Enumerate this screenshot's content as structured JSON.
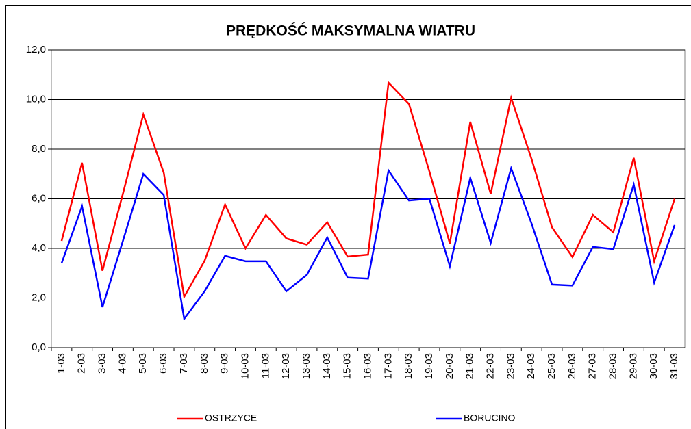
{
  "chart_data": {
    "type": "line",
    "title": "PRĘDKOŚĆ MAKSYMALNA WIATRU",
    "categories": [
      "1-03",
      "2-03",
      "3-03",
      "4-03",
      "5-03",
      "6-03",
      "7-03",
      "8-03",
      "9-03",
      "10-03",
      "11-03",
      "12-03",
      "13-03",
      "14-03",
      "15-03",
      "16-03",
      "17-03",
      "18-03",
      "19-03",
      "20-03",
      "21-03",
      "22-03",
      "23-03",
      "24-03",
      "25-03",
      "26-03",
      "27-03",
      "28-03",
      "29-03",
      "30-03",
      "31-03"
    ],
    "series": [
      {
        "name": "OSTRZYCE",
        "color": "#ff0000",
        "values": [
          4.3,
          7.45,
          3.1,
          6.2,
          9.4,
          7.05,
          2.05,
          3.5,
          5.77,
          4.0,
          5.35,
          4.4,
          4.15,
          5.05,
          3.67,
          3.75,
          10.68,
          9.82,
          7.1,
          4.2,
          9.1,
          6.2,
          10.07,
          7.6,
          4.85,
          3.65,
          5.35,
          4.65,
          7.65,
          3.48,
          6.0
        ]
      },
      {
        "name": "BORUCINO",
        "color": "#0000ff",
        "values": [
          3.4,
          5.7,
          1.63,
          4.3,
          7.0,
          6.15,
          1.16,
          2.27,
          3.7,
          3.48,
          3.48,
          2.27,
          2.93,
          4.44,
          2.82,
          2.78,
          7.14,
          5.93,
          6.0,
          3.28,
          6.84,
          4.22,
          7.23,
          5.0,
          2.54,
          2.5,
          4.06,
          3.97,
          6.57,
          2.62,
          4.94
        ]
      }
    ],
    "ylim": [
      0,
      12
    ],
    "yticks": [
      {
        "value": 0,
        "label": "0,0"
      },
      {
        "value": 2,
        "label": "2,0"
      },
      {
        "value": 4,
        "label": "4,0"
      },
      {
        "value": 6,
        "label": "6,0"
      },
      {
        "value": 8,
        "label": "8,0"
      },
      {
        "value": 10,
        "label": "10,0"
      },
      {
        "value": 12,
        "label": "12,0"
      }
    ],
    "grid": true,
    "legend": "bottom"
  }
}
